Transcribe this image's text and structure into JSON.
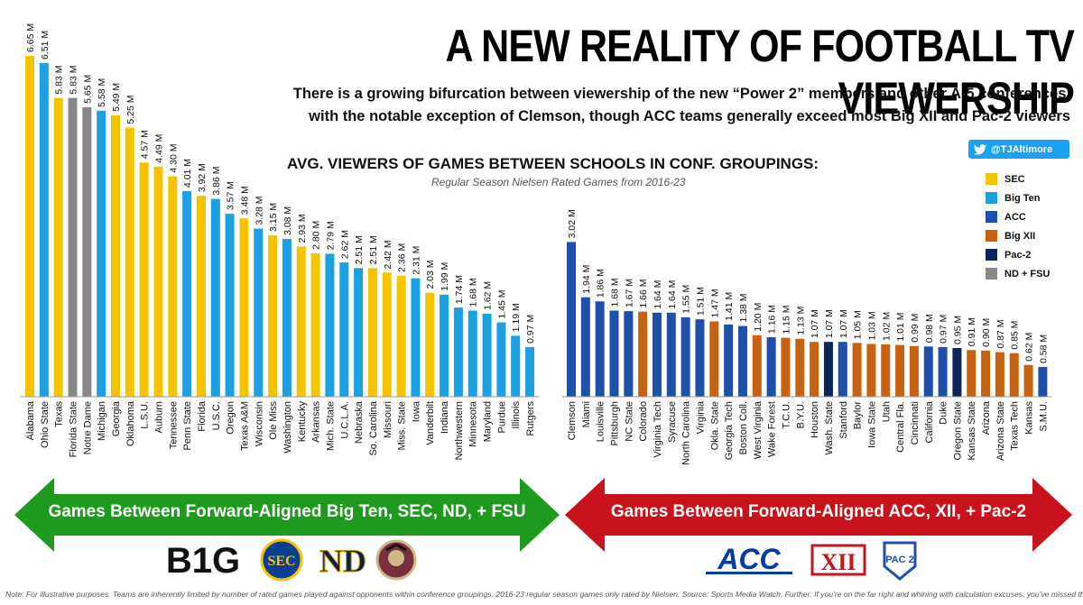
{
  "title": "A NEW REALITY OF FOOTBALL TV VIEWERSHIP",
  "subtitle_line1": "There is a growing bifurcation between viewership of the new “Power 2” members and other A-5 conferences,",
  "subtitle_line2": "with the notable exception of Clemson, though ACC teams generally exceed most Big XII and Pac-2 viewers",
  "twitter_handle": "@TJAltimore",
  "footnote": "Note:  For illustrative purposes.  Teams are inherently limited by number of rated games played against opponents within conference groupings.  2016-23 regular season games only rated by Nielsen.  Source:  Sports Media Watch.  Further: If you're on the far right and whining with calculation excuses, you've missed the point.",
  "arrows": {
    "left_label": "Games Between Forward-Aligned Big Ten, SEC, ND, + FSU",
    "right_label": "Games Between Forward-Aligned ACC, XII, + Pac-2",
    "left_color": "#1f9a1f",
    "right_color": "#c8121c"
  },
  "logos": {
    "big_ten": "B1G",
    "sec": "SEC",
    "notre_dame": "ND",
    "fsu": "FSU",
    "acc": "ACC",
    "big_12": "XII",
    "pac": "PAC 2"
  },
  "chart_data": {
    "type": "bar",
    "title": "AVG. VIEWERS OF GAMES BETWEEN SCHOOLS IN CONF. GROUPINGS:",
    "subtitle": "Regular Season Nielsen Rated Games from 2016-23",
    "value_suffix": " M",
    "ylim": [
      0,
      6.65
    ],
    "grid": false,
    "legend_position": "right",
    "legend": [
      {
        "name": "SEC",
        "color": "#f5c300"
      },
      {
        "name": "Big Ten",
        "color": "#1ba1e2"
      },
      {
        "name": "ACC",
        "color": "#1f4fa8"
      },
      {
        "name": "Big XII",
        "color": "#c8620f"
      },
      {
        "name": "Pac-2",
        "color": "#0b2559"
      },
      {
        "name": "ND + FSU",
        "color": "#888888"
      }
    ],
    "groups": [
      {
        "bars": [
          {
            "label": "Alabama",
            "value": 6.65,
            "conf": "SEC"
          },
          {
            "label": "Ohio State",
            "value": 6.51,
            "conf": "Big Ten"
          },
          {
            "label": "Texas",
            "value": 5.83,
            "conf": "SEC"
          },
          {
            "label": "Florida State",
            "value": 5.83,
            "conf": "ND + FSU"
          },
          {
            "label": "Notre Dame",
            "value": 5.65,
            "conf": "ND + FSU"
          },
          {
            "label": "Michigan",
            "value": 5.58,
            "conf": "Big Ten"
          },
          {
            "label": "Georgia",
            "value": 5.49,
            "conf": "SEC"
          },
          {
            "label": "Oklahoma",
            "value": 5.25,
            "conf": "SEC"
          },
          {
            "label": "L.S.U.",
            "value": 4.57,
            "conf": "SEC"
          },
          {
            "label": "Auburn",
            "value": 4.49,
            "conf": "SEC"
          },
          {
            "label": "Tennessee",
            "value": 4.3,
            "conf": "SEC"
          },
          {
            "label": "Penn State",
            "value": 4.01,
            "conf": "Big Ten"
          },
          {
            "label": "Florida",
            "value": 3.92,
            "conf": "SEC"
          },
          {
            "label": "U.S.C.",
            "value": 3.86,
            "conf": "Big Ten"
          },
          {
            "label": "Oregon",
            "value": 3.57,
            "conf": "Big Ten"
          },
          {
            "label": "Texas A&M",
            "value": 3.48,
            "conf": "SEC"
          },
          {
            "label": "Wisconsin",
            "value": 3.28,
            "conf": "Big Ten"
          },
          {
            "label": "Ole Miss",
            "value": 3.15,
            "conf": "SEC"
          },
          {
            "label": "Washington",
            "value": 3.08,
            "conf": "Big Ten"
          },
          {
            "label": "Kentucky",
            "value": 2.93,
            "conf": "SEC"
          },
          {
            "label": "Arkansas",
            "value": 2.8,
            "conf": "SEC"
          },
          {
            "label": "Mich. State",
            "value": 2.79,
            "conf": "Big Ten"
          },
          {
            "label": "U.C.L.A.",
            "value": 2.62,
            "conf": "Big Ten"
          },
          {
            "label": "Nebraska",
            "value": 2.51,
            "conf": "Big Ten"
          },
          {
            "label": "So. Carolina",
            "value": 2.51,
            "conf": "SEC"
          },
          {
            "label": "Missouri",
            "value": 2.42,
            "conf": "SEC"
          },
          {
            "label": "Miss. State",
            "value": 2.36,
            "conf": "SEC"
          },
          {
            "label": "Iowa",
            "value": 2.31,
            "conf": "Big Ten"
          },
          {
            "label": "Vanderbilt",
            "value": 2.03,
            "conf": "SEC"
          },
          {
            "label": "Indiana",
            "value": 1.99,
            "conf": "Big Ten"
          },
          {
            "label": "Northwestern",
            "value": 1.74,
            "conf": "Big Ten"
          },
          {
            "label": "Minnesota",
            "value": 1.68,
            "conf": "Big Ten"
          },
          {
            "label": "Maryland",
            "value": 1.62,
            "conf": "Big Ten"
          },
          {
            "label": "Purdue",
            "value": 1.45,
            "conf": "Big Ten"
          },
          {
            "label": "Illinois",
            "value": 1.19,
            "conf": "Big Ten"
          },
          {
            "label": "Rutgers",
            "value": 0.97,
            "conf": "Big Ten"
          }
        ]
      },
      {
        "bars": [
          {
            "label": "Clemson",
            "value": 3.02,
            "conf": "ACC"
          },
          {
            "label": "Miami",
            "value": 1.94,
            "conf": "ACC"
          },
          {
            "label": "Louisville",
            "value": 1.86,
            "conf": "ACC"
          },
          {
            "label": "Pittsburgh",
            "value": 1.68,
            "conf": "ACC"
          },
          {
            "label": "NC State",
            "value": 1.67,
            "conf": "ACC"
          },
          {
            "label": "Colorado",
            "value": 1.66,
            "conf": "Big XII"
          },
          {
            "label": "Virginia Tech",
            "value": 1.64,
            "conf": "ACC"
          },
          {
            "label": "Syracuse",
            "value": 1.64,
            "conf": "ACC"
          },
          {
            "label": "North Carolina",
            "value": 1.55,
            "conf": "ACC"
          },
          {
            "label": "Virginia",
            "value": 1.51,
            "conf": "ACC"
          },
          {
            "label": "Okla. State",
            "value": 1.47,
            "conf": "Big XII"
          },
          {
            "label": "Georgia Tech",
            "value": 1.41,
            "conf": "ACC"
          },
          {
            "label": "Boston Coll.",
            "value": 1.38,
            "conf": "ACC"
          },
          {
            "label": "West Virginia",
            "value": 1.2,
            "conf": "Big XII"
          },
          {
            "label": "Wake Forest",
            "value": 1.16,
            "conf": "ACC"
          },
          {
            "label": "T.C.U.",
            "value": 1.15,
            "conf": "Big XII"
          },
          {
            "label": "B.Y.U.",
            "value": 1.13,
            "conf": "Big XII"
          },
          {
            "label": "Houston",
            "value": 1.07,
            "conf": "Big XII"
          },
          {
            "label": "Wash. State",
            "value": 1.07,
            "conf": "Pac-2"
          },
          {
            "label": "Stanford",
            "value": 1.07,
            "conf": "ACC"
          },
          {
            "label": "Baylor",
            "value": 1.05,
            "conf": "Big XII"
          },
          {
            "label": "Iowa State",
            "value": 1.03,
            "conf": "Big XII"
          },
          {
            "label": "Utah",
            "value": 1.02,
            "conf": "Big XII"
          },
          {
            "label": "Central Fla.",
            "value": 1.01,
            "conf": "Big XII"
          },
          {
            "label": "Cincinnati",
            "value": 0.99,
            "conf": "Big XII"
          },
          {
            "label": "California",
            "value": 0.98,
            "conf": "ACC"
          },
          {
            "label": "Duke",
            "value": 0.97,
            "conf": "ACC"
          },
          {
            "label": "Oregon State",
            "value": 0.95,
            "conf": "Pac-2"
          },
          {
            "label": "Kansas State",
            "value": 0.91,
            "conf": "Big XII"
          },
          {
            "label": "Arizona",
            "value": 0.9,
            "conf": "Big XII"
          },
          {
            "label": "Arizona State",
            "value": 0.87,
            "conf": "Big XII"
          },
          {
            "label": "Texas Tech",
            "value": 0.85,
            "conf": "Big XII"
          },
          {
            "label": "Kansas",
            "value": 0.62,
            "conf": "Big XII"
          },
          {
            "label": "S.M.U.",
            "value": 0.58,
            "conf": "ACC"
          }
        ]
      }
    ]
  }
}
